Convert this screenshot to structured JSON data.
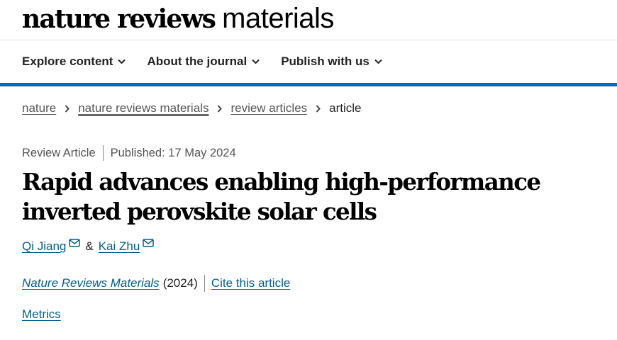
{
  "masthead": {
    "brand_bold": "nature reviews",
    "brand_light": "materials"
  },
  "nav": {
    "items": [
      {
        "label": "Explore content",
        "icon": "chevron-down-icon"
      },
      {
        "label": "About the journal",
        "icon": "chevron-down-icon"
      },
      {
        "label": "Publish with us",
        "icon": "chevron-down-icon"
      }
    ]
  },
  "breadcrumb": {
    "items": [
      "nature",
      "nature reviews materials",
      "review articles"
    ],
    "current": "article",
    "separator_icon": "chevron-right-icon"
  },
  "article": {
    "type": "Review Article",
    "published": "Published: 17 May 2024",
    "title": "Rapid advances enabling high-performance inverted perovskite solar cells",
    "authors": [
      {
        "name": "Qi Jiang",
        "icon": "email-icon"
      },
      {
        "name": "Kai Zhu",
        "icon": "email-icon"
      }
    ],
    "author_joiner": "&",
    "journal": "Nature Reviews Materials",
    "year": "(2024)",
    "cite_label": "Cite this article",
    "metrics_label": "Metrics"
  },
  "colors": {
    "accent_bar": "#0067c5",
    "link": "#025e8d",
    "text": "#222222"
  }
}
